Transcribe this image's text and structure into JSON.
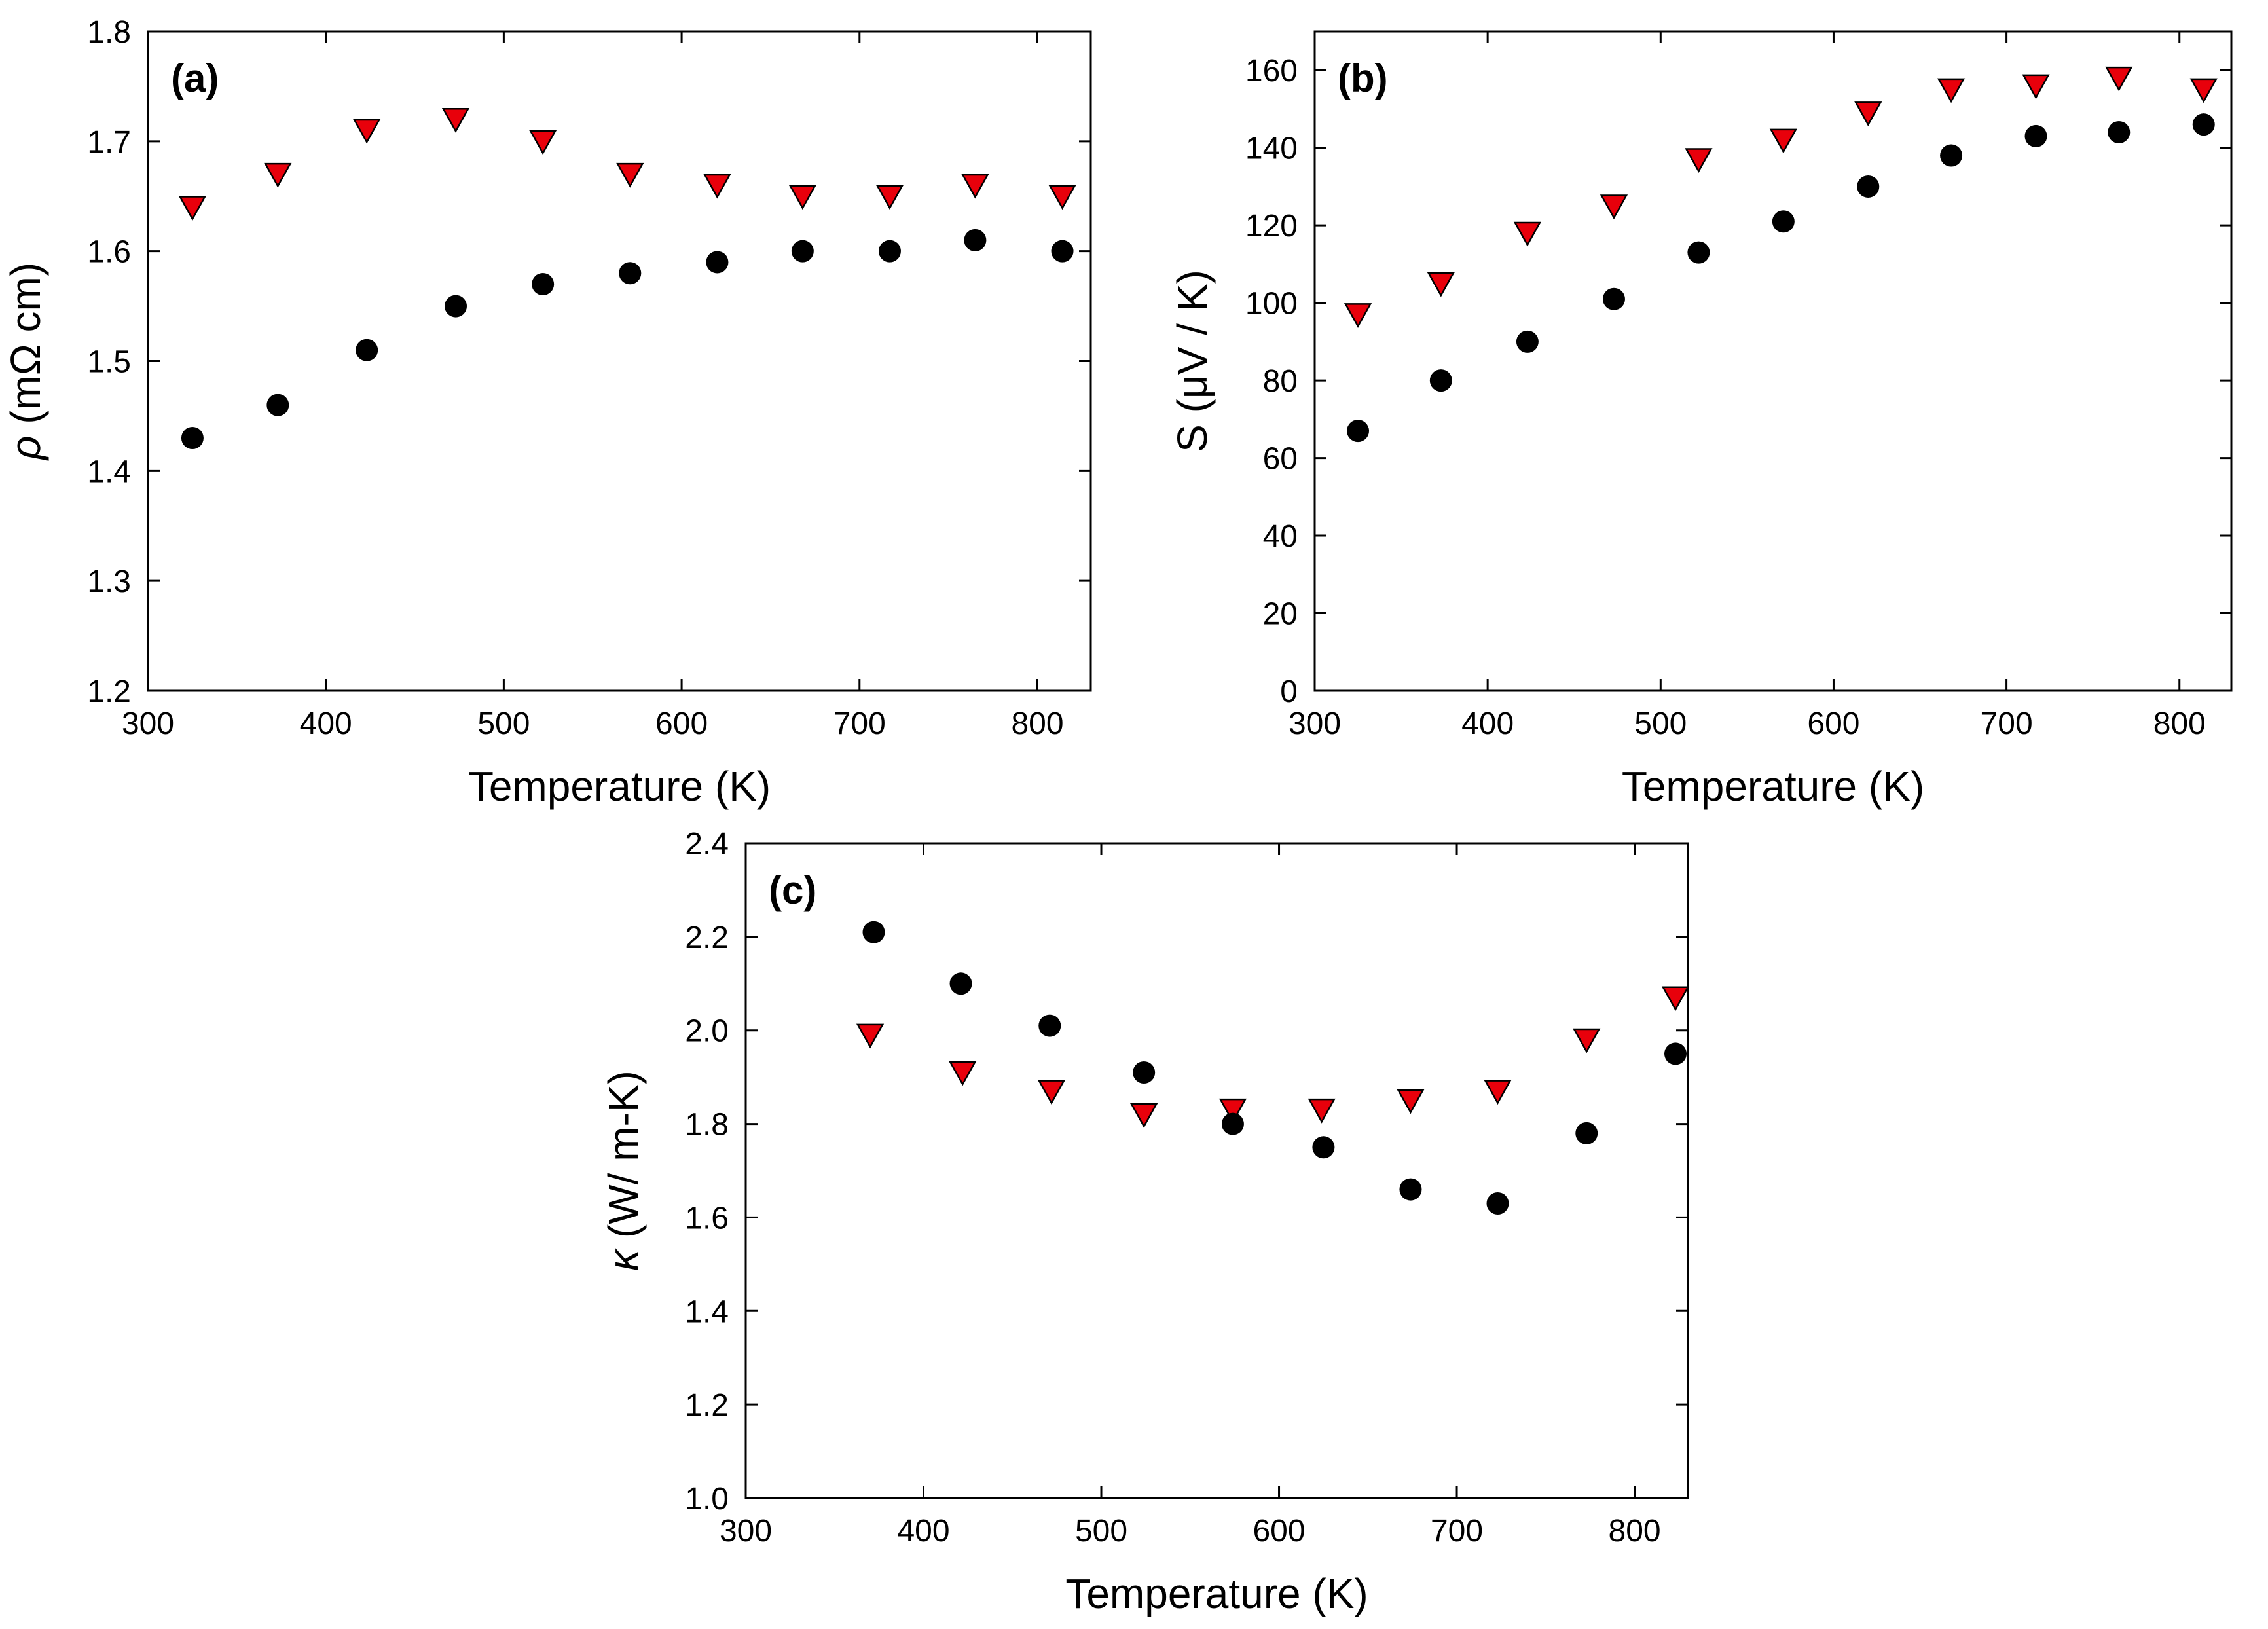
{
  "chart_data": [
    {
      "type": "scatter",
      "panel_label": "(a)",
      "xlabel": "Temperature (K)",
      "ylabel_symbol": "ρ",
      "ylabel_unit": " (mΩ cm)",
      "xlim": [
        300,
        830
      ],
      "ylim": [
        1.2,
        1.8
      ],
      "xticks": [
        "300",
        "400",
        "500",
        "600",
        "700",
        "800"
      ],
      "yticks": [
        "1.2",
        "1.3",
        "1.4",
        "1.5",
        "1.6",
        "1.7",
        "1.8"
      ],
      "series": [
        {
          "name": "triangles",
          "marker": "triangle-down",
          "color": "#e8000b",
          "x": [
            325,
            373,
            423,
            473,
            522,
            571,
            620,
            668,
            717,
            765,
            814
          ],
          "y": [
            1.64,
            1.67,
            1.71,
            1.72,
            1.7,
            1.67,
            1.66,
            1.65,
            1.65,
            1.66,
            1.65
          ]
        },
        {
          "name": "circles",
          "marker": "circle",
          "color": "#000000",
          "x": [
            325,
            373,
            423,
            473,
            522,
            571,
            620,
            668,
            717,
            765,
            814
          ],
          "y": [
            1.43,
            1.46,
            1.51,
            1.55,
            1.57,
            1.58,
            1.59,
            1.6,
            1.6,
            1.61,
            1.6
          ]
        }
      ]
    },
    {
      "type": "scatter",
      "panel_label": "(b)",
      "xlabel": "Temperature (K)",
      "ylabel_symbol": "S",
      "ylabel_unit": " (μV / K)",
      "xlim": [
        300,
        830
      ],
      "ylim": [
        0,
        170
      ],
      "xticks": [
        "300",
        "400",
        "500",
        "600",
        "700",
        "800"
      ],
      "yticks": [
        "0",
        "20",
        "40",
        "60",
        "80",
        "100",
        "120",
        "140",
        "160"
      ],
      "series": [
        {
          "name": "triangles",
          "marker": "triangle-down",
          "color": "#e8000b",
          "x": [
            325,
            373,
            423,
            473,
            522,
            571,
            620,
            668,
            717,
            765,
            814
          ],
          "y": [
            97,
            105,
            118,
            125,
            137,
            142,
            149,
            155,
            156,
            158,
            155
          ]
        },
        {
          "name": "circles",
          "marker": "circle",
          "color": "#000000",
          "x": [
            325,
            373,
            423,
            473,
            522,
            571,
            620,
            668,
            717,
            765,
            814
          ],
          "y": [
            67,
            80,
            90,
            101,
            113,
            121,
            130,
            138,
            143,
            144,
            146
          ]
        }
      ]
    },
    {
      "type": "scatter",
      "panel_label": "(c)",
      "xlabel": "Temperature (K)",
      "ylabel_symbol": "κ",
      "ylabel_unit": " (W/ m-K)",
      "xlim": [
        300,
        830
      ],
      "ylim": [
        1.0,
        2.4
      ],
      "xticks": [
        "300",
        "400",
        "500",
        "600",
        "700",
        "800"
      ],
      "yticks": [
        "1.0",
        "1.2",
        "1.4",
        "1.6",
        "1.8",
        "2.0",
        "2.2",
        "2.4"
      ],
      "series": [
        {
          "name": "triangles",
          "marker": "triangle-down",
          "color": "#e8000b",
          "x": [
            370,
            422,
            472,
            524,
            574,
            624,
            674,
            723,
            773,
            823
          ],
          "y": [
            1.99,
            1.91,
            1.87,
            1.82,
            1.83,
            1.83,
            1.85,
            1.87,
            1.98,
            2.07
          ]
        },
        {
          "name": "circles",
          "marker": "circle",
          "color": "#000000",
          "x": [
            372,
            421,
            471,
            524,
            574,
            625,
            674,
            723,
            773,
            823
          ],
          "y": [
            2.21,
            2.1,
            2.01,
            1.91,
            1.8,
            1.75,
            1.66,
            1.63,
            1.78,
            1.95
          ]
        }
      ]
    }
  ]
}
